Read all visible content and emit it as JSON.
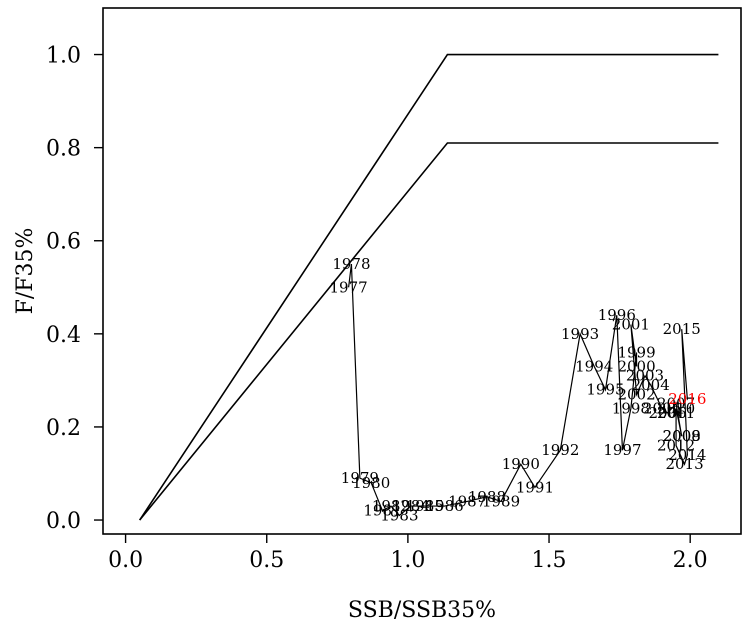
{
  "chart_data": {
    "type": "line",
    "title": "",
    "xlabel": "SSB/SSB35%",
    "ylabel": "F/F35%",
    "xlim": [
      -0.08,
      2.18
    ],
    "ylim": [
      -0.03,
      1.1
    ],
    "xticks": [
      0.0,
      0.5,
      1.0,
      1.5,
      2.0
    ],
    "xtick_labels": [
      "0.0",
      "0.5",
      "1.0",
      "1.5",
      "2.0"
    ],
    "yticks": [
      0.0,
      0.2,
      0.4,
      0.6,
      0.8,
      1.0
    ],
    "ytick_labels": [
      "0.0",
      "0.2",
      "0.4",
      "0.6",
      "0.8",
      "1.0"
    ],
    "grid": false,
    "legend": "none",
    "highlight_color": "#ff0000",
    "reference_lines": [
      {
        "x": [
          0.05,
          1.14,
          2.1
        ],
        "y": [
          0.0,
          1.0,
          1.0
        ]
      },
      {
        "x": [
          0.05,
          1.14,
          2.1
        ],
        "y": [
          0.0,
          0.81,
          0.81
        ]
      }
    ],
    "series": [
      {
        "points": [
          {
            "year": "1977",
            "x": 0.79,
            "y": 0.5
          },
          {
            "year": "1978",
            "x": 0.8,
            "y": 0.55
          },
          {
            "year": "1979",
            "x": 0.83,
            "y": 0.09
          },
          {
            "year": "1980",
            "x": 0.87,
            "y": 0.08
          },
          {
            "year": "1981",
            "x": 0.91,
            "y": 0.02
          },
          {
            "year": "1982",
            "x": 0.94,
            "y": 0.03
          },
          {
            "year": "1983",
            "x": 0.97,
            "y": 0.01
          },
          {
            "year": "1984",
            "x": 1.01,
            "y": 0.03
          },
          {
            "year": "1985",
            "x": 1.06,
            "y": 0.03
          },
          {
            "year": "1986",
            "x": 1.13,
            "y": 0.03
          },
          {
            "year": "1987",
            "x": 1.21,
            "y": 0.04
          },
          {
            "year": "1988",
            "x": 1.28,
            "y": 0.05
          },
          {
            "year": "1989",
            "x": 1.33,
            "y": 0.04
          },
          {
            "year": "1990",
            "x": 1.4,
            "y": 0.12
          },
          {
            "year": "1991",
            "x": 1.45,
            "y": 0.07
          },
          {
            "year": "1992",
            "x": 1.54,
            "y": 0.15
          },
          {
            "year": "1993",
            "x": 1.61,
            "y": 0.4
          },
          {
            "year": "1994",
            "x": 1.66,
            "y": 0.33
          },
          {
            "year": "1995",
            "x": 1.7,
            "y": 0.28
          },
          {
            "year": "1996",
            "x": 1.74,
            "y": 0.44
          },
          {
            "year": "1997",
            "x": 1.76,
            "y": 0.15
          },
          {
            "year": "1998",
            "x": 1.79,
            "y": 0.24
          },
          {
            "year": "1999",
            "x": 1.81,
            "y": 0.36
          },
          {
            "year": "2000",
            "x": 1.81,
            "y": 0.33
          },
          {
            "year": "2001",
            "x": 1.79,
            "y": 0.42
          },
          {
            "year": "2002",
            "x": 1.81,
            "y": 0.27
          },
          {
            "year": "2003",
            "x": 1.84,
            "y": 0.31
          },
          {
            "year": "2004",
            "x": 1.86,
            "y": 0.29
          },
          {
            "year": "2005",
            "x": 1.9,
            "y": 0.24
          },
          {
            "year": "2006",
            "x": 1.92,
            "y": 0.23
          },
          {
            "year": "2007",
            "x": 1.95,
            "y": 0.25
          },
          {
            "year": "2008",
            "x": 1.97,
            "y": 0.18
          },
          {
            "year": "2009",
            "x": 1.97,
            "y": 0.18
          },
          {
            "year": "2010",
            "x": 1.95,
            "y": 0.24
          },
          {
            "year": "2011",
            "x": 1.95,
            "y": 0.23
          },
          {
            "year": "2012",
            "x": 1.95,
            "y": 0.16
          },
          {
            "year": "2013",
            "x": 1.98,
            "y": 0.12
          },
          {
            "year": "2014",
            "x": 1.99,
            "y": 0.14
          },
          {
            "year": "2015",
            "x": 1.97,
            "y": 0.41
          },
          {
            "year": "2016",
            "x": 1.99,
            "y": 0.26,
            "highlight": true
          }
        ]
      }
    ]
  }
}
